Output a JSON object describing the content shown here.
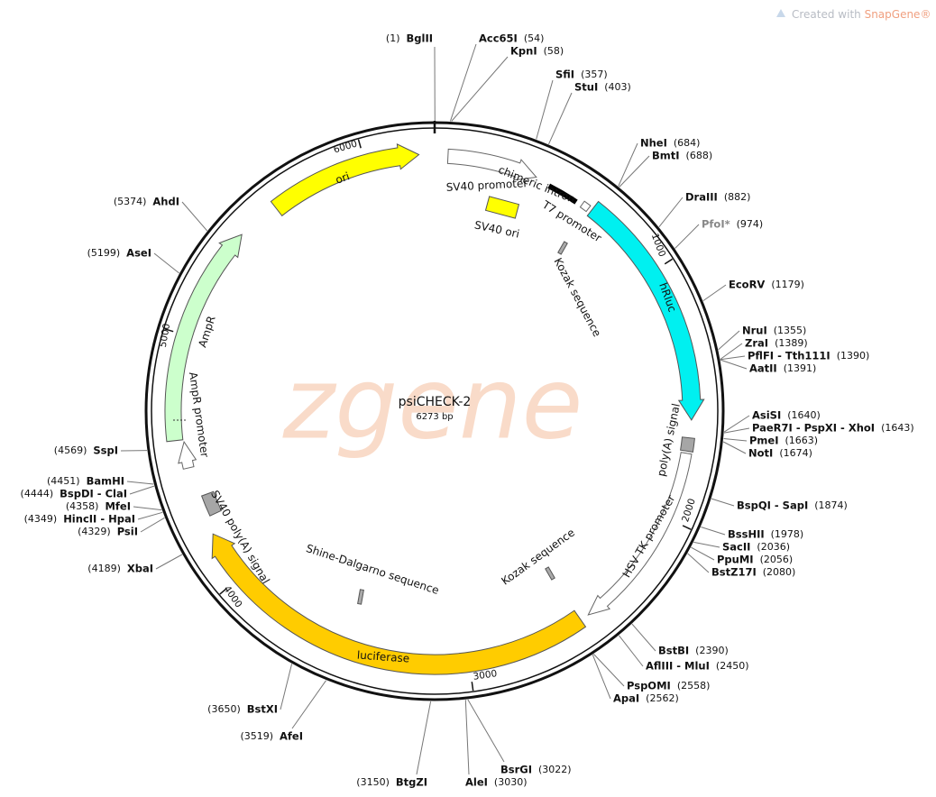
{
  "header": {
    "watermark_prefix": "Created with ",
    "watermark_brand": "SnapGene®",
    "logo": "zgene"
  },
  "map": {
    "name": "psiCHECK-2",
    "length_label": "6273 bp",
    "ticks": [
      1000,
      2000,
      3000,
      4000,
      5000,
      6000
    ],
    "sites": [
      {
        "name": "BglII",
        "position": "(1)"
      },
      {
        "name": "Acc65I",
        "position": "(54)"
      },
      {
        "name": "KpnI",
        "position": "(58)"
      },
      {
        "name": "SfiI",
        "position": "(357)"
      },
      {
        "name": "StuI",
        "position": "(403)"
      },
      {
        "name": "NheI",
        "position": "(684)"
      },
      {
        "name": "BmtI",
        "position": "(688)"
      },
      {
        "name": "DraIII",
        "position": "(882)"
      },
      {
        "name": "PfoI*",
        "position": "(974)"
      },
      {
        "name": "EcoRV",
        "position": "(1179)"
      },
      {
        "name": "NruI",
        "position": "(1355)"
      },
      {
        "name": "ZraI",
        "position": "(1389)"
      },
      {
        "name": "PflFI - Tth111I",
        "position": "(1390)"
      },
      {
        "name": "AatII",
        "position": "(1391)"
      },
      {
        "name": "AsiSI",
        "position": "(1640)"
      },
      {
        "name": "PaeR7I - PspXI - XhoI",
        "position": "(1643)"
      },
      {
        "name": "PmeI",
        "position": "(1663)"
      },
      {
        "name": "NotI",
        "position": "(1674)"
      },
      {
        "name": "BspQI - SapI",
        "position": "(1874)"
      },
      {
        "name": "BssHII",
        "position": "(1978)"
      },
      {
        "name": "SacII",
        "position": "(2036)"
      },
      {
        "name": "PpuMI",
        "position": "(2056)"
      },
      {
        "name": "BstZ17I",
        "position": "(2080)"
      },
      {
        "name": "BstBI",
        "position": "(2390)"
      },
      {
        "name": "AflIII - MluI",
        "position": "(2450)"
      },
      {
        "name": "PspOMI",
        "position": "(2558)"
      },
      {
        "name": "ApaI",
        "position": "(2562)"
      },
      {
        "name": "BsrGI",
        "position": "(3022)"
      },
      {
        "name": "AleI",
        "position": "(3030)"
      },
      {
        "name": "BtgZI",
        "position": "(3150)"
      },
      {
        "name": "AfeI",
        "position": "(3519)"
      },
      {
        "name": "BstXI",
        "position": "(3650)"
      },
      {
        "name": "XbaI",
        "position": "(4189)"
      },
      {
        "name": "PsiI",
        "position": "(4329)"
      },
      {
        "name": "HincII - HpaI",
        "position": "(4349)"
      },
      {
        "name": "MfeI",
        "position": "(4358)"
      },
      {
        "name": "BspDI - ClaI",
        "position": "(4444)"
      },
      {
        "name": "BamHI",
        "position": "(4451)"
      },
      {
        "name": "SspI",
        "position": "(4569)"
      },
      {
        "name": "AseI",
        "position": "(5199)"
      },
      {
        "name": "AhdI",
        "position": "(5374)"
      }
    ],
    "features": [
      {
        "label": "ori"
      },
      {
        "label": "SV40 promoter"
      },
      {
        "label": "chimeric intron"
      },
      {
        "label": "T7 promoter"
      },
      {
        "label": "SV40 ori"
      },
      {
        "label": "Kozak sequence"
      },
      {
        "label": "hRluc"
      },
      {
        "label": "poly(A) signal"
      },
      {
        "label": "HSV TK promoter"
      },
      {
        "label": "Kozak sequence"
      },
      {
        "label": "Shine-Dalgarno sequence"
      },
      {
        "label": "luciferase"
      },
      {
        "label": "SV40 poly(A) signal"
      },
      {
        "label": "AmpR"
      },
      {
        "label": "AmpR promoter"
      }
    ]
  }
}
